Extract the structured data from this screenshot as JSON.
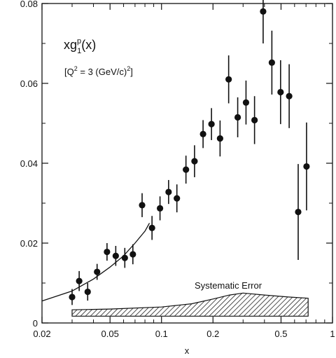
{
  "chart_data": {
    "type": "scatter",
    "title_parts": {
      "base": "xg",
      "sup": "p",
      "sub": "1",
      "tail": "(x)"
    },
    "subtitle_parts": {
      "open": "[Q",
      "sup1": "2",
      "mid": " = 3 (GeV/c)",
      "sup2": "2",
      "close": "]"
    },
    "xlabel": "x",
    "ylabel": "",
    "x_scale": "log",
    "xlim": [
      0.02,
      1
    ],
    "ylim": [
      0,
      0.08
    ],
    "x_ticks": [
      {
        "value": 0.02,
        "label": "0.02"
      },
      {
        "value": 0.05,
        "label": "0.05"
      },
      {
        "value": 0.1,
        "label": "0.1"
      },
      {
        "value": 0.2,
        "label": "0.2"
      },
      {
        "value": 0.5,
        "label": "0.5"
      },
      {
        "value": 1,
        "label": "1"
      }
    ],
    "y_ticks": [
      {
        "value": 0,
        "label": "0"
      },
      {
        "value": 0.02,
        "label": "0.02"
      },
      {
        "value": 0.04,
        "label": "0.04"
      },
      {
        "value": 0.06,
        "label": "0.06"
      },
      {
        "value": 0.08,
        "label": "0.08"
      }
    ],
    "grid": false,
    "points": [
      {
        "x": 0.03,
        "y": 0.0065,
        "err": 0.002
      },
      {
        "x": 0.033,
        "y": 0.0105,
        "err": 0.0025
      },
      {
        "x": 0.037,
        "y": 0.0078,
        "err": 0.0022
      },
      {
        "x": 0.042,
        "y": 0.0128,
        "err": 0.002
      },
      {
        "x": 0.048,
        "y": 0.0178,
        "err": 0.0022
      },
      {
        "x": 0.054,
        "y": 0.0168,
        "err": 0.0025
      },
      {
        "x": 0.061,
        "y": 0.0163,
        "err": 0.0025
      },
      {
        "x": 0.068,
        "y": 0.0172,
        "err": 0.0025
      },
      {
        "x": 0.077,
        "y": 0.0295,
        "err": 0.003
      },
      {
        "x": 0.088,
        "y": 0.0238,
        "err": 0.003
      },
      {
        "x": 0.098,
        "y": 0.0287,
        "err": 0.003
      },
      {
        "x": 0.11,
        "y": 0.0328,
        "err": 0.003
      },
      {
        "x": 0.123,
        "y": 0.0312,
        "err": 0.0035
      },
      {
        "x": 0.139,
        "y": 0.0384,
        "err": 0.0035
      },
      {
        "x": 0.156,
        "y": 0.0405,
        "err": 0.004
      },
      {
        "x": 0.175,
        "y": 0.0473,
        "err": 0.0035
      },
      {
        "x": 0.196,
        "y": 0.0498,
        "err": 0.004
      },
      {
        "x": 0.22,
        "y": 0.0462,
        "err": 0.0045
      },
      {
        "x": 0.247,
        "y": 0.061,
        "err": 0.006
      },
      {
        "x": 0.279,
        "y": 0.0515,
        "err": 0.005
      },
      {
        "x": 0.312,
        "y": 0.0552,
        "err": 0.0055
      },
      {
        "x": 0.35,
        "y": 0.0508,
        "err": 0.006
      },
      {
        "x": 0.393,
        "y": 0.078,
        "err": 0.008
      },
      {
        "x": 0.442,
        "y": 0.0652,
        "err": 0.008
      },
      {
        "x": 0.497,
        "y": 0.0578,
        "err": 0.008
      },
      {
        "x": 0.558,
        "y": 0.0568,
        "err": 0.008
      },
      {
        "x": 0.63,
        "y": 0.0278,
        "err": 0.012
      },
      {
        "x": 0.705,
        "y": 0.0392,
        "err": 0.011
      }
    ],
    "fit_curve": [
      {
        "x": 0.02,
        "y": 0.0055
      },
      {
        "x": 0.03,
        "y": 0.008
      },
      {
        "x": 0.04,
        "y": 0.011
      },
      {
        "x": 0.05,
        "y": 0.014
      },
      {
        "x": 0.06,
        "y": 0.0168
      },
      {
        "x": 0.07,
        "y": 0.02
      },
      {
        "x": 0.08,
        "y": 0.023
      },
      {
        "x": 0.085,
        "y": 0.025
      }
    ],
    "systematic_error": {
      "label": "Systematic Error",
      "band": [
        {
          "x": 0.03,
          "y": 0.0033
        },
        {
          "x": 0.05,
          "y": 0.0035
        },
        {
          "x": 0.1,
          "y": 0.004
        },
        {
          "x": 0.15,
          "y": 0.0048
        },
        {
          "x": 0.2,
          "y": 0.006
        },
        {
          "x": 0.25,
          "y": 0.007
        },
        {
          "x": 0.3,
          "y": 0.0075
        },
        {
          "x": 0.4,
          "y": 0.007
        },
        {
          "x": 0.55,
          "y": 0.0065
        },
        {
          "x": 0.72,
          "y": 0.0062
        }
      ],
      "band_bottom": 0.0017
    }
  }
}
